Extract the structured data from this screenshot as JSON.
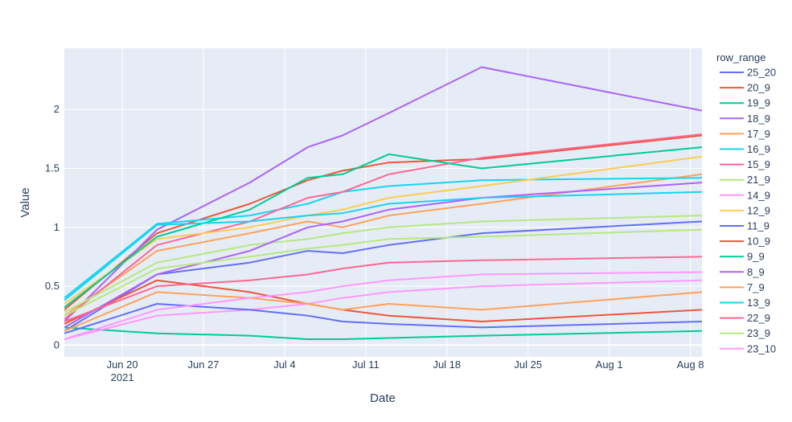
{
  "chart_data": {
    "type": "line",
    "title": "",
    "xlabel": "Date",
    "ylabel": "Value",
    "x_range": [
      "2021-06-15",
      "2021-08-09"
    ],
    "ylim": [
      -0.1,
      2.52
    ],
    "x_ticks": [
      {
        "date": "2021-06-20",
        "label": "Jun 20",
        "sublabel": "2021"
      },
      {
        "date": "2021-06-27",
        "label": "Jun 27"
      },
      {
        "date": "2021-07-04",
        "label": "Jul 4"
      },
      {
        "date": "2021-07-11",
        "label": "Jul 11"
      },
      {
        "date": "2021-07-18",
        "label": "Jul 18"
      },
      {
        "date": "2021-07-25",
        "label": "Jul 25"
      },
      {
        "date": "2021-08-01",
        "label": "Aug 1"
      },
      {
        "date": "2021-08-08",
        "label": "Aug 8"
      }
    ],
    "y_ticks": [
      {
        "value": 0,
        "label": "0"
      },
      {
        "value": 0.5,
        "label": "0.5"
      },
      {
        "value": 1,
        "label": "1"
      },
      {
        "value": 1.5,
        "label": "1.5"
      },
      {
        "value": 2,
        "label": "2"
      }
    ],
    "grid": true,
    "legend": {
      "title": "row_range",
      "placement": "right"
    },
    "colors": [
      "#636efa",
      "#EF553B",
      "#00cc96",
      "#ab63fa",
      "#FFA15A",
      "#19d3f3",
      "#FF6692",
      "#B6E880",
      "#FF97FF",
      "#FECB52"
    ],
    "dates": [
      "2021-06-15",
      "2021-06-23",
      "2021-07-01",
      "2021-07-06",
      "2021-07-09",
      "2021-07-13",
      "2021-07-21",
      "2021-08-09"
    ],
    "series": [
      {
        "name": "25_20",
        "color": "#636efa",
        "values": [
          0.12,
          0.6,
          0.7,
          0.8,
          0.78,
          0.85,
          0.95,
          1.05
        ]
      },
      {
        "name": "20_9",
        "color": "#EF553B",
        "values": [
          0.3,
          0.95,
          1.2,
          1.4,
          1.48,
          1.55,
          1.58,
          1.78
        ]
      },
      {
        "name": "19_9",
        "color": "#00cc96",
        "values": [
          0.15,
          0.1,
          0.08,
          0.05,
          0.05,
          0.06,
          0.08,
          0.12
        ]
      },
      {
        "name": "18_9",
        "color": "#ab63fa",
        "values": [
          0.2,
          0.98,
          1.38,
          1.68,
          1.78,
          1.97,
          2.36,
          1.99
        ]
      },
      {
        "name": "17_9",
        "color": "#FFA15A",
        "values": [
          0.25,
          0.8,
          0.95,
          1.05,
          1.0,
          1.1,
          1.2,
          1.45
        ]
      },
      {
        "name": "16_9",
        "color": "#19d3f3",
        "values": [
          0.4,
          1.03,
          1.1,
          1.2,
          1.3,
          1.35,
          1.4,
          1.42
        ]
      },
      {
        "name": "15_9",
        "color": "#FF6692",
        "values": [
          0.22,
          0.85,
          1.05,
          1.25,
          1.3,
          1.45,
          1.59,
          1.79
        ]
      },
      {
        "name": "21_9",
        "color": "#B6E880",
        "values": [
          0.28,
          0.7,
          0.85,
          0.9,
          0.95,
          1.0,
          1.05,
          1.1
        ]
      },
      {
        "name": "14_9",
        "color": "#FF97FF",
        "values": [
          0.05,
          0.25,
          0.3,
          0.35,
          0.4,
          0.45,
          0.5,
          0.55
        ]
      },
      {
        "name": "12_9",
        "color": "#FECB52",
        "values": [
          0.35,
          0.9,
          1.0,
          1.1,
          1.15,
          1.25,
          1.35,
          1.6
        ]
      },
      {
        "name": "11_9",
        "color": "#636efa",
        "values": [
          0.1,
          0.35,
          0.3,
          0.25,
          0.2,
          0.18,
          0.15,
          0.2
        ]
      },
      {
        "name": "10_9",
        "color": "#EF553B",
        "values": [
          0.18,
          0.55,
          0.45,
          0.35,
          0.3,
          0.25,
          0.2,
          0.3
        ]
      },
      {
        "name": "9_9",
        "color": "#00cc96",
        "values": [
          0.32,
          0.92,
          1.15,
          1.42,
          1.45,
          1.62,
          1.5,
          1.68
        ]
      },
      {
        "name": "8_9",
        "color": "#ab63fa",
        "values": [
          0.15,
          0.6,
          0.8,
          1.0,
          1.05,
          1.15,
          1.25,
          1.38
        ]
      },
      {
        "name": "7_9",
        "color": "#FFA15A",
        "values": [
          0.12,
          0.45,
          0.4,
          0.35,
          0.3,
          0.35,
          0.3,
          0.45
        ]
      },
      {
        "name": "13_9",
        "color": "#19d3f3",
        "values": [
          0.38,
          1.02,
          1.05,
          1.1,
          1.12,
          1.2,
          1.25,
          1.3
        ]
      },
      {
        "name": "22_9",
        "color": "#FF6692",
        "values": [
          0.2,
          0.5,
          0.55,
          0.6,
          0.65,
          0.7,
          0.72,
          0.75
        ]
      },
      {
        "name": "23_9",
        "color": "#B6E880",
        "values": [
          0.25,
          0.65,
          0.75,
          0.82,
          0.85,
          0.9,
          0.92,
          0.98
        ]
      },
      {
        "name": "23_10",
        "color": "#FF97FF",
        "values": [
          0.05,
          0.3,
          0.4,
          0.45,
          0.5,
          0.55,
          0.6,
          0.62
        ]
      }
    ]
  }
}
